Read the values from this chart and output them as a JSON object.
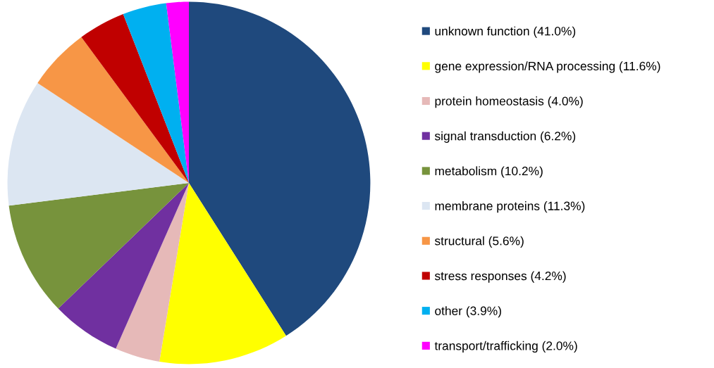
{
  "chart_data": {
    "type": "pie",
    "categories": [
      "unknown function (41.0%)",
      "gene expression/RNA processing (11.6%)",
      "protein homeostasis (4.0%)",
      "signal transduction (6.2%)",
      "metabolism (10.2%)",
      "membrane proteins (11.3%)",
      "structural (5.6%)",
      "stress responses (4.2%)",
      "other (3.9%)",
      "transport/trafficking (2.0%)"
    ],
    "values": [
      41.0,
      11.6,
      4.0,
      6.2,
      10.2,
      11.3,
      5.6,
      4.2,
      3.9,
      2.0
    ],
    "colors": [
      "#1f497d",
      "#ffff00",
      "#e6b9b8",
      "#7030a0",
      "#77933c",
      "#dce6f2",
      "#f79646",
      "#c00000",
      "#00b0f0",
      "#ff00ff"
    ],
    "legend": "right"
  }
}
